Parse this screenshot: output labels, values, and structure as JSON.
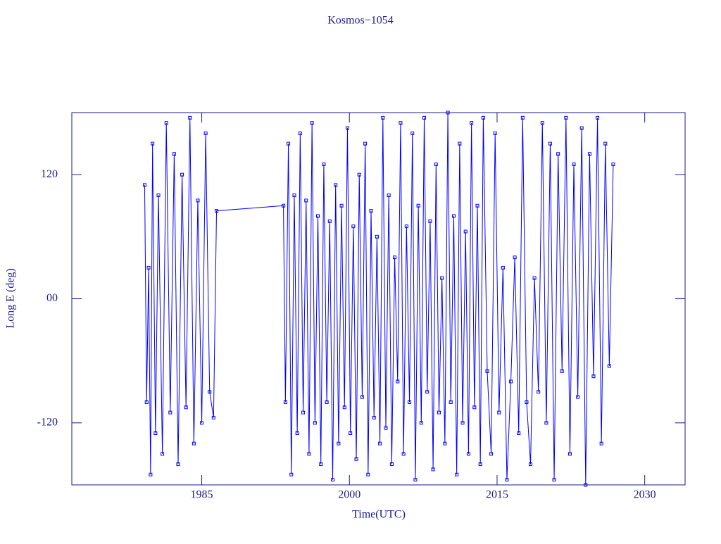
{
  "chart_data": {
    "type": "line",
    "title": "Kosmos−1054",
    "xlabel": "Time(UTC)",
    "ylabel": "Long E (deg)",
    "xlim": [
      1971.8,
      2034.1
    ],
    "ylim": [
      -180,
      180
    ],
    "xticks": [
      1985,
      2000,
      2015,
      2030
    ],
    "yticks": [
      {
        "value": -120,
        "label": "-120"
      },
      {
        "value": 0,
        "label": "00"
      },
      {
        "value": 120,
        "label": "120"
      }
    ],
    "series": [
      {
        "color": "#0000ff",
        "x": [
          1979.2,
          1979.4,
          1979.6,
          1979.8,
          1980.0,
          1980.3,
          1980.6,
          1981.0,
          1981.4,
          1981.8,
          1982.2,
          1982.6,
          1983.0,
          1983.4,
          1983.8,
          1984.2,
          1984.6,
          1985.0,
          1985.4,
          1985.8,
          1986.2,
          1986.5,
          1993.3,
          1993.5,
          1993.8,
          1994.1,
          1994.4,
          1994.7,
          1995.0,
          1995.3,
          1995.6,
          1995.9,
          1996.2,
          1996.5,
          1996.8,
          1997.1,
          1997.4,
          1997.7,
          1998.0,
          1998.3,
          1998.6,
          1998.9,
          1999.2,
          1999.5,
          1999.8,
          2000.1,
          2000.4,
          2000.7,
          2001.0,
          2001.3,
          2001.6,
          2001.9,
          2002.2,
          2002.5,
          2002.8,
          2003.1,
          2003.4,
          2003.7,
          2004.0,
          2004.3,
          2004.6,
          2004.9,
          2005.2,
          2005.5,
          2005.8,
          2006.1,
          2006.4,
          2006.7,
          2007.0,
          2007.3,
          2007.6,
          2007.9,
          2008.2,
          2008.5,
          2008.8,
          2009.1,
          2009.4,
          2009.7,
          2010.0,
          2010.3,
          2010.6,
          2010.9,
          2011.2,
          2011.5,
          2011.8,
          2012.1,
          2012.4,
          2012.7,
          2013.0,
          2013.3,
          2013.6,
          2014.0,
          2014.4,
          2014.8,
          2015.2,
          2015.6,
          2016.0,
          2016.4,
          2016.8,
          2017.2,
          2017.6,
          2018.0,
          2018.4,
          2018.8,
          2019.2,
          2019.6,
          2020.0,
          2020.4,
          2020.8,
          2021.2,
          2021.6,
          2022.0,
          2022.4,
          2022.8,
          2023.2,
          2023.6,
          2024.0,
          2024.4,
          2024.8,
          2025.2,
          2025.6,
          2026.0,
          2026.4,
          2026.8
        ],
        "values": [
          110,
          -100,
          30,
          -170,
          150,
          -130,
          100,
          -150,
          170,
          -110,
          140,
          -160,
          120,
          -105,
          175,
          -140,
          95,
          -120,
          160,
          -90,
          -115,
          85,
          90,
          -100,
          150,
          -170,
          100,
          -130,
          160,
          -110,
          95,
          -150,
          170,
          -120,
          80,
          -160,
          130,
          -100,
          75,
          -175,
          110,
          -140,
          90,
          -105,
          165,
          -130,
          70,
          -155,
          120,
          -95,
          150,
          -170,
          85,
          -115,
          60,
          -140,
          175,
          -125,
          100,
          -160,
          40,
          -80,
          170,
          -150,
          70,
          -100,
          160,
          -175,
          90,
          -120,
          175,
          -90,
          75,
          -165,
          130,
          -110,
          20,
          -140,
          180,
          -100,
          80,
          -170,
          150,
          -120,
          65,
          -150,
          170,
          -105,
          90,
          -160,
          175,
          -70,
          -150,
          160,
          -110,
          30,
          -175,
          -80,
          40,
          -130,
          175,
          -100,
          -160,
          20,
          -90,
          170,
          -120,
          150,
          -175,
          140,
          -70,
          175,
          -150,
          130,
          -95,
          165,
          -180,
          140,
          -75,
          175,
          -140,
          150,
          -65,
          130
        ]
      }
    ]
  }
}
